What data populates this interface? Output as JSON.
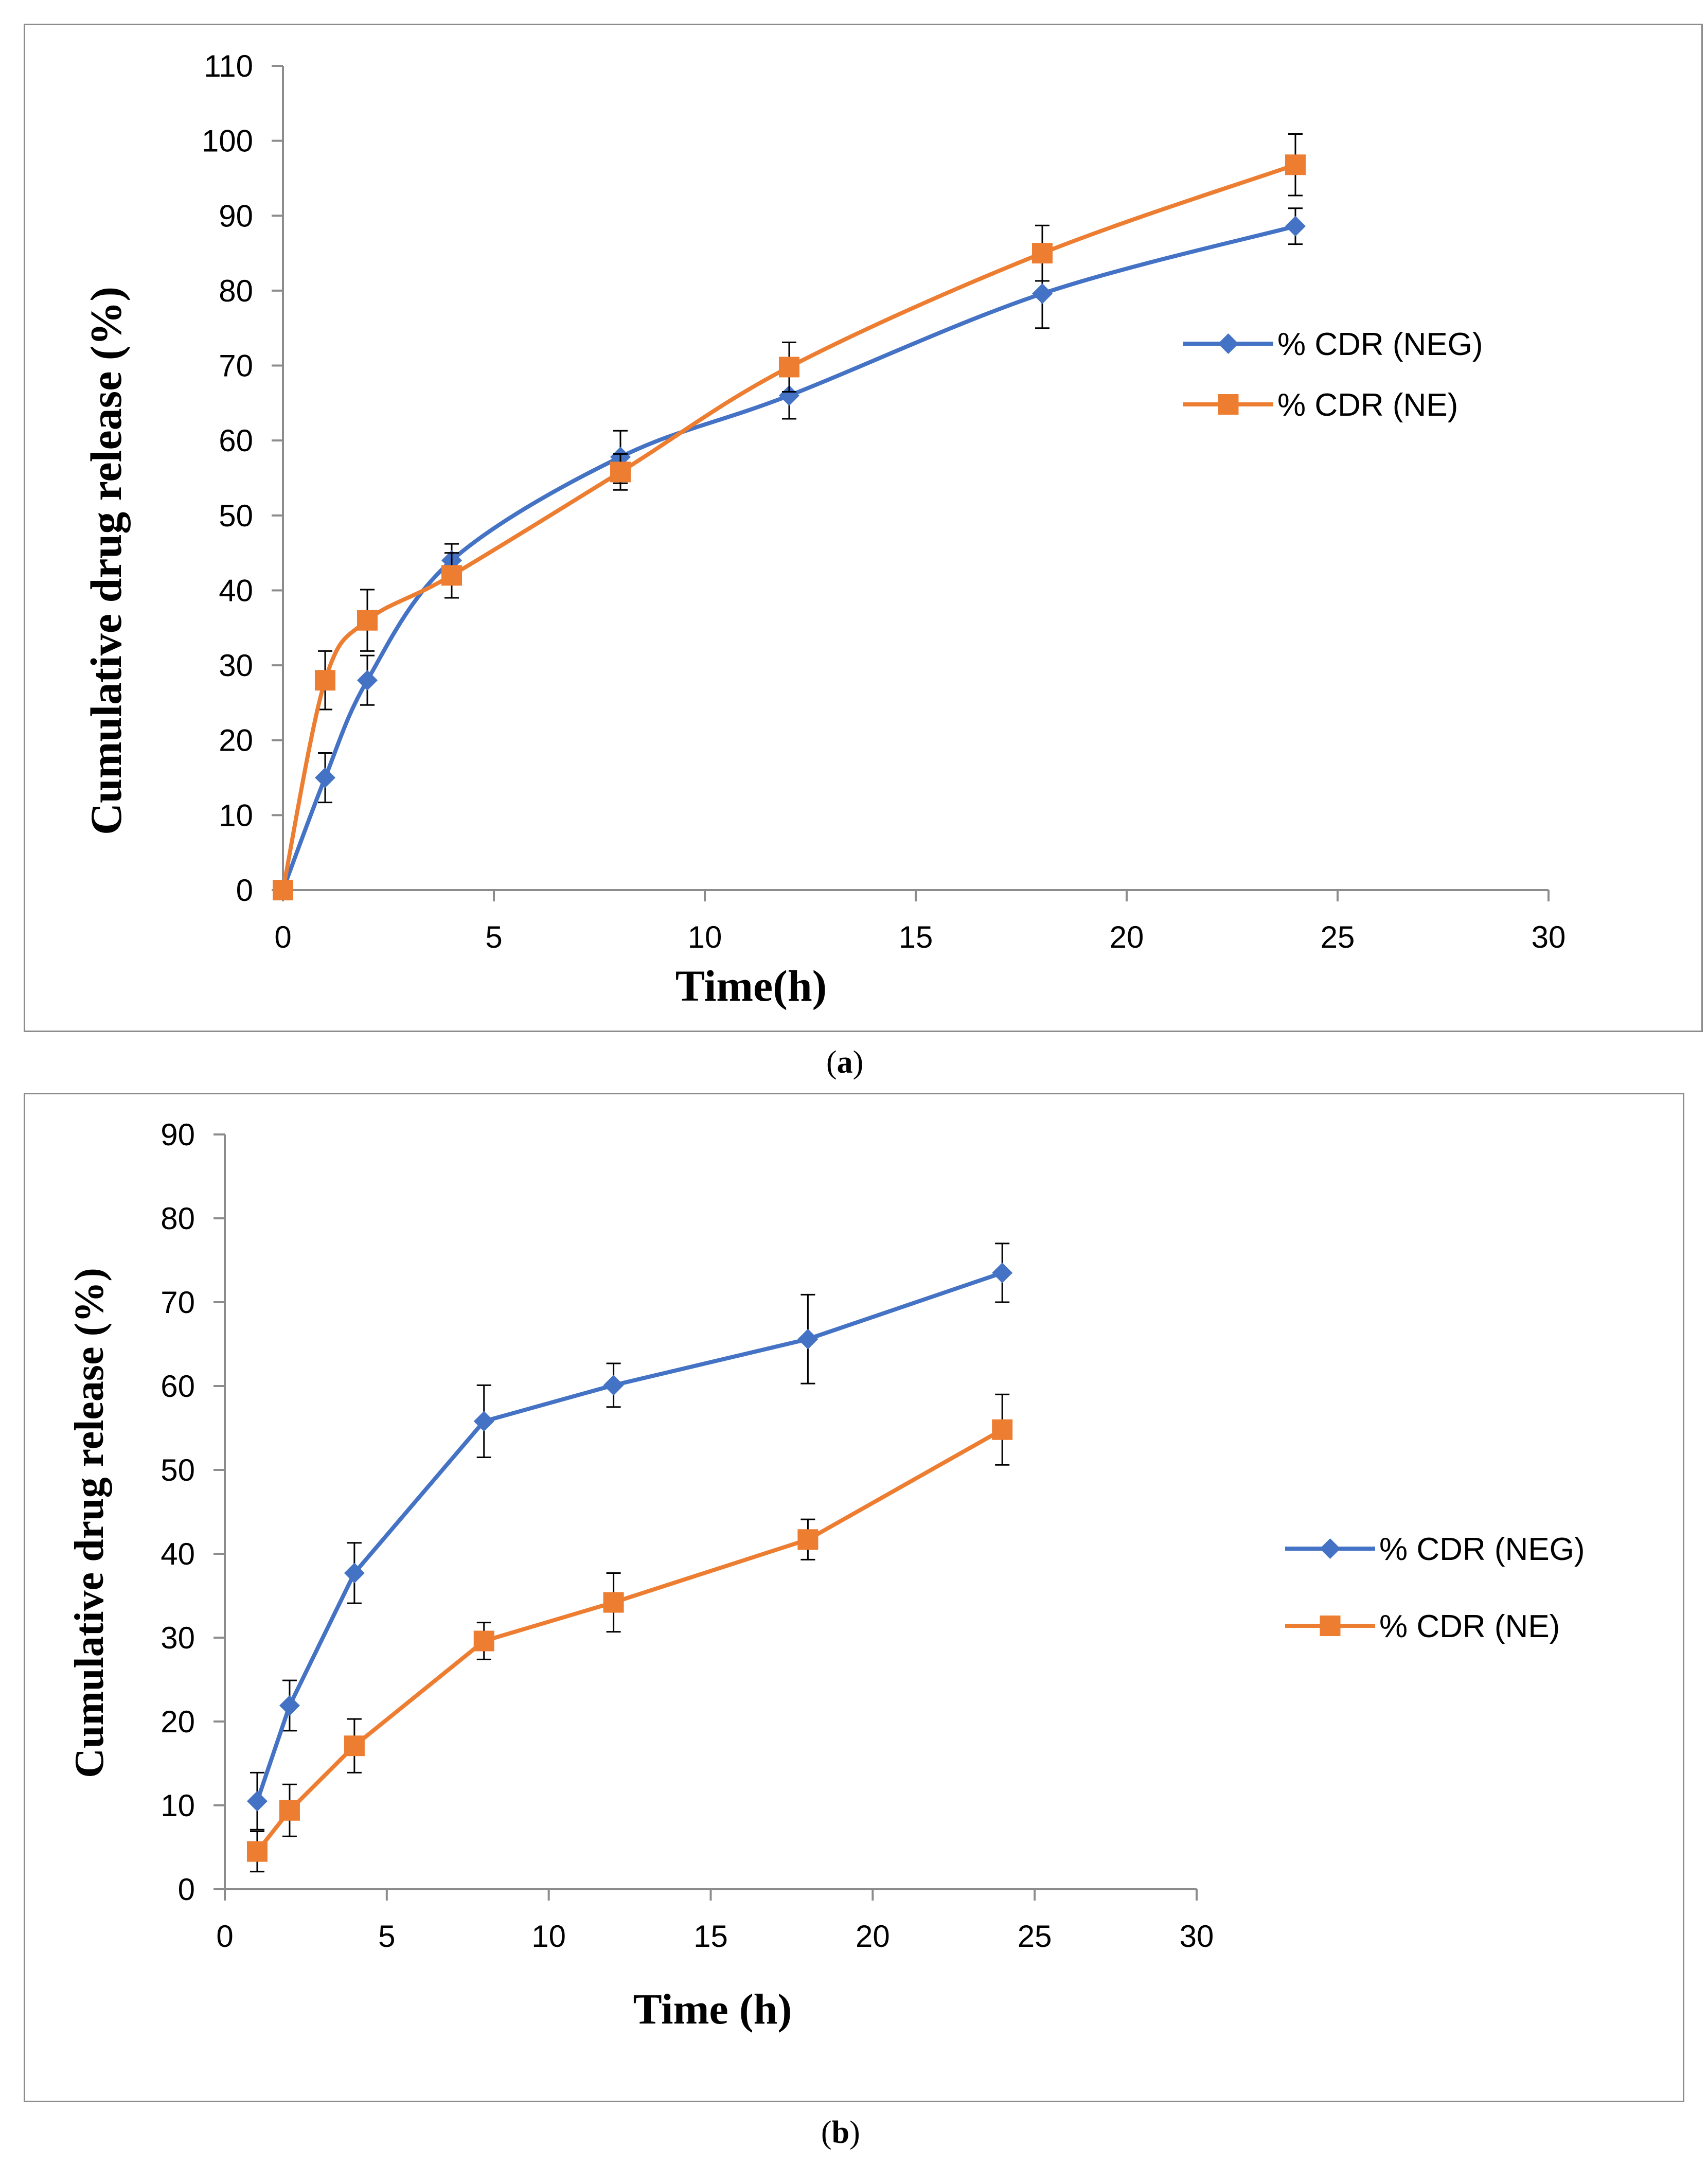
{
  "chart_data": [
    {
      "panel": "a",
      "type": "line",
      "caption_letter": "a",
      "xlabel": "Time(h)",
      "ylabel": "Cumulative drug release (%)",
      "xlim": [
        0,
        30
      ],
      "ylim": [
        0,
        110
      ],
      "xticks": [
        0,
        5,
        10,
        15,
        20,
        25,
        30
      ],
      "yticks": [
        0,
        10,
        20,
        30,
        40,
        50,
        60,
        70,
        80,
        90,
        100,
        110
      ],
      "grid": false,
      "legend_position": "right",
      "smooth": true,
      "series": [
        {
          "name": "% CDR (NEG)",
          "color": "#4472C4",
          "marker": "diamond",
          "x": [
            0,
            1,
            2,
            4,
            8,
            12,
            18,
            24
          ],
          "y": [
            0,
            15,
            28,
            44,
            57.8,
            66,
            79.6,
            88.6
          ],
          "err": [
            0,
            3.3,
            3.3,
            2.2,
            3.5,
            3.1,
            4.6,
            2.4
          ]
        },
        {
          "name": "% CDR (NE)",
          "color": "#ED7D31",
          "marker": "square",
          "x": [
            0,
            1,
            2,
            4,
            8,
            12,
            18,
            24
          ],
          "y": [
            0,
            28,
            36,
            42,
            55.8,
            69.8,
            85,
            96.8
          ],
          "err": [
            0,
            3.9,
            4.1,
            3.0,
            2.4,
            3.3,
            3.7,
            4.1
          ]
        }
      ]
    },
    {
      "panel": "b",
      "type": "line",
      "caption_letter": "b",
      "xlabel": "Time (h)",
      "ylabel": "Cumulative drug release (%)",
      "xlim": [
        0,
        30
      ],
      "ylim": [
        0,
        90
      ],
      "xticks": [
        0,
        5,
        10,
        15,
        20,
        25,
        30
      ],
      "yticks": [
        0,
        10,
        20,
        30,
        40,
        50,
        60,
        70,
        80,
        90
      ],
      "grid": false,
      "legend_position": "right",
      "smooth": false,
      "series": [
        {
          "name": "% CDR (NEG)",
          "color": "#4472C4",
          "marker": "diamond",
          "x": [
            1,
            2,
            4,
            8,
            12,
            18,
            24
          ],
          "y": [
            10.5,
            21.9,
            37.7,
            55.8,
            60.1,
            65.6,
            73.5
          ],
          "err": [
            3.4,
            3.0,
            3.6,
            4.3,
            2.6,
            5.3,
            3.5
          ]
        },
        {
          "name": "% CDR (NE)",
          "color": "#ED7D31",
          "marker": "square",
          "x": [
            1,
            2,
            4,
            8,
            12,
            18,
            24
          ],
          "y": [
            4.5,
            9.4,
            17.1,
            29.6,
            34.2,
            41.7,
            54.8
          ],
          "err": [
            2.4,
            3.1,
            3.2,
            2.2,
            3.5,
            2.4,
            4.2
          ]
        }
      ]
    }
  ]
}
